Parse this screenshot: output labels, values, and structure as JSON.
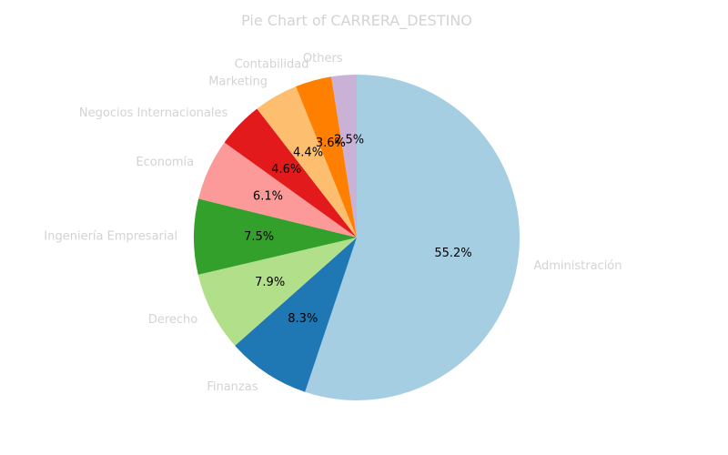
{
  "chart_data": {
    "type": "pie",
    "title": "Pie Chart of CARRERA_DESTINO",
    "start_angle_deg": 90,
    "direction": "clockwise",
    "slices": [
      {
        "label": "Administración",
        "value": 55.2,
        "pct_label": "55.2%",
        "color": "#a6cee3"
      },
      {
        "label": "Finanzas",
        "value": 8.3,
        "pct_label": "8.3%",
        "color": "#1f78b4"
      },
      {
        "label": "Derecho",
        "value": 7.9,
        "pct_label": "7.9%",
        "color": "#b2df8a"
      },
      {
        "label": "Ingeniería Empresarial",
        "value": 7.5,
        "pct_label": "7.5%",
        "color": "#33a02c"
      },
      {
        "label": "Economía",
        "value": 6.1,
        "pct_label": "6.1%",
        "color": "#fb9a99"
      },
      {
        "label": "Negocios Internacionales",
        "value": 4.6,
        "pct_label": "4.6%",
        "color": "#e31a1c"
      },
      {
        "label": "Marketing",
        "value": 4.4,
        "pct_label": "4.4%",
        "color": "#fdbf6f"
      },
      {
        "label": "Contabilidad",
        "value": 3.6,
        "pct_label": "3.6%",
        "color": "#ff7f00"
      },
      {
        "label": "Others",
        "value": 2.5,
        "pct_label": "2.5%",
        "color": "#cab2d6"
      }
    ]
  }
}
